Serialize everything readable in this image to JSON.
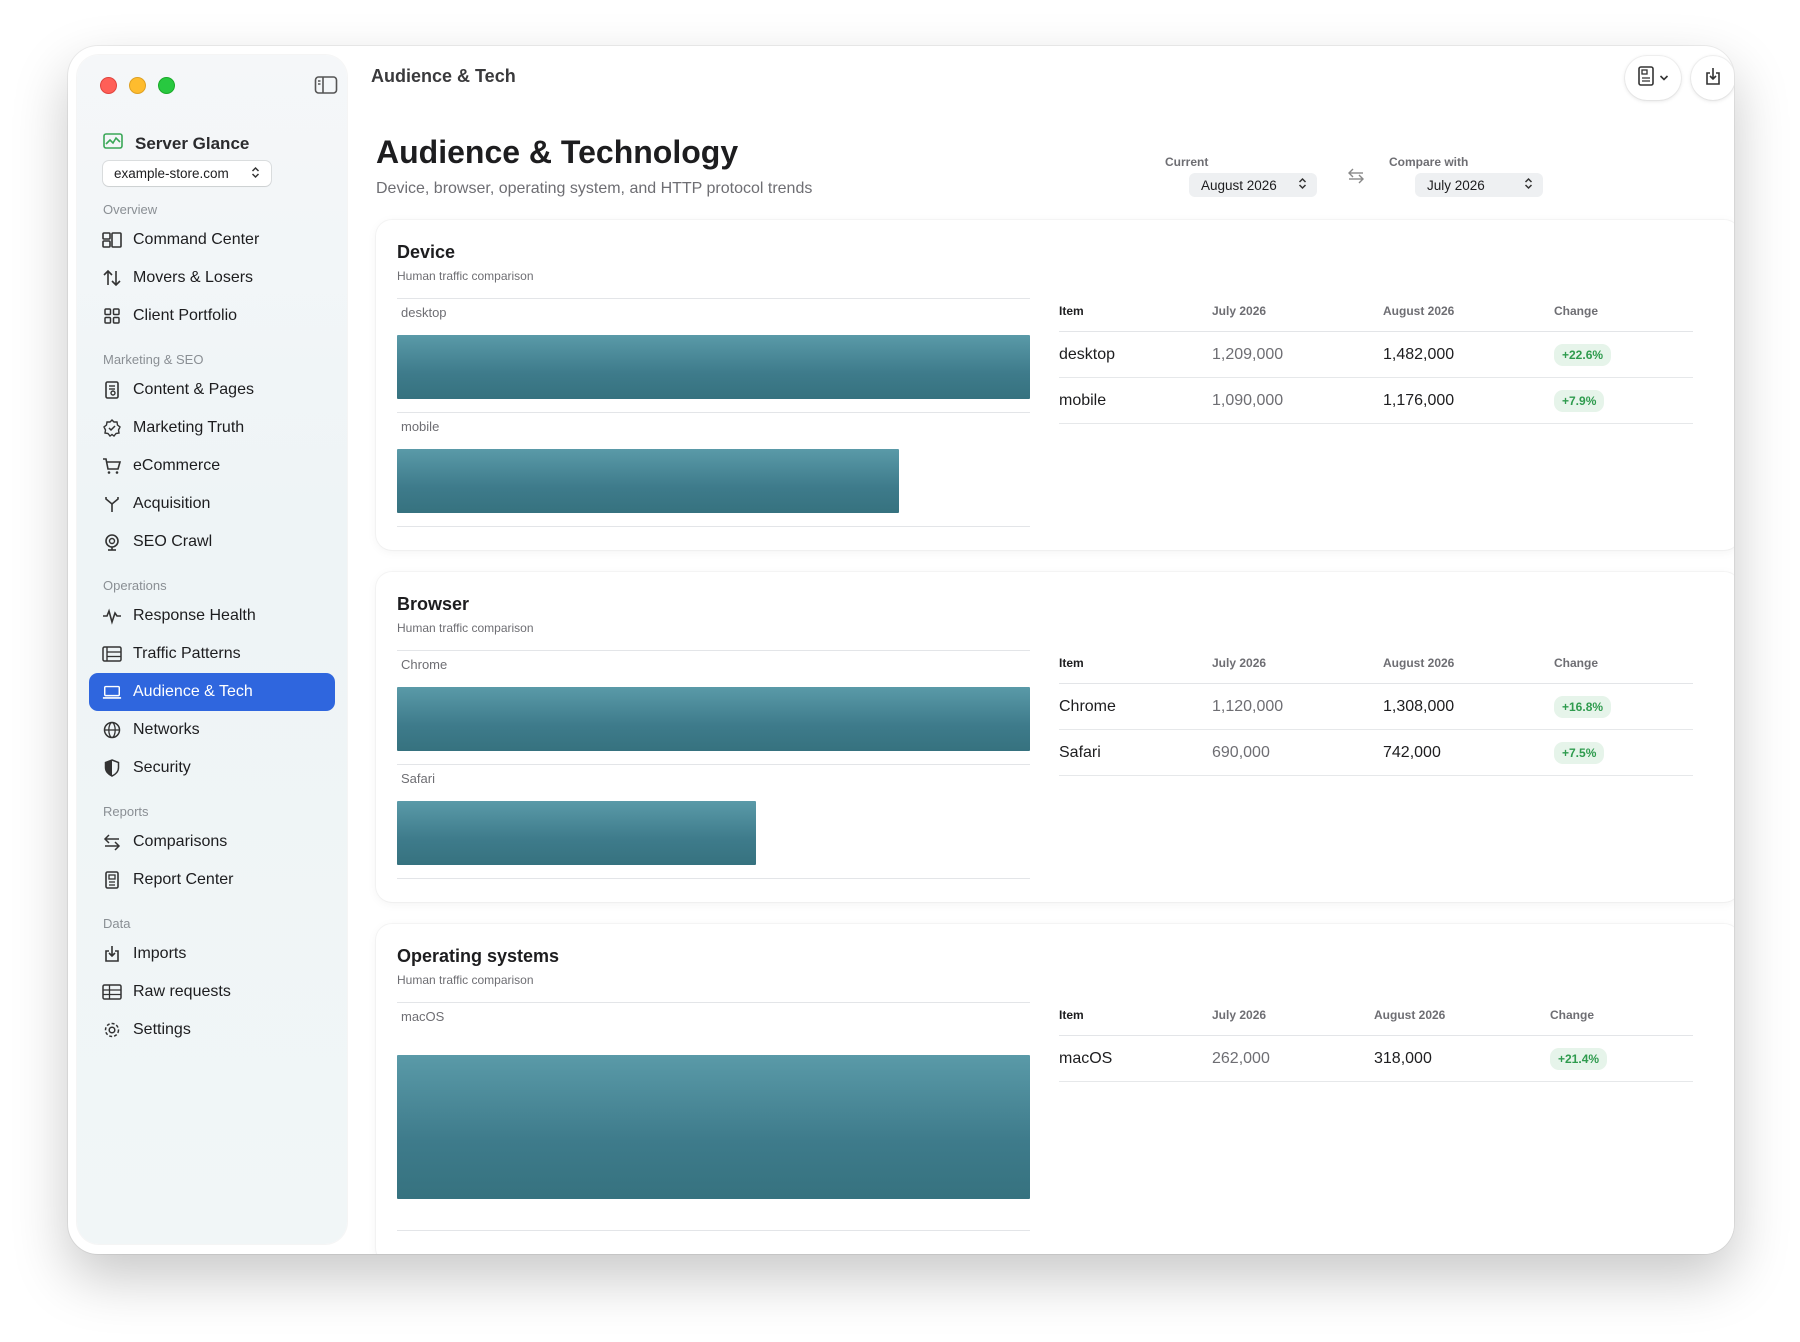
{
  "window": {
    "toolbar_title": "Audience & Tech"
  },
  "sidebar": {
    "brand": "Server Glance",
    "site": "example-store.com",
    "sections": [
      {
        "title": "Overview",
        "items": [
          {
            "label": "Command Center",
            "icon": "command-center-icon"
          },
          {
            "label": "Movers & Losers",
            "icon": "arrows-up-down-icon"
          },
          {
            "label": "Client Portfolio",
            "icon": "grid-icon"
          }
        ]
      },
      {
        "title": "Marketing & SEO",
        "items": [
          {
            "label": "Content & Pages",
            "icon": "document-icon"
          },
          {
            "label": "Marketing Truth",
            "icon": "verified-badge-icon"
          },
          {
            "label": "eCommerce",
            "icon": "cart-icon"
          },
          {
            "label": "Acquisition",
            "icon": "fork-icon"
          },
          {
            "label": "SEO Crawl",
            "icon": "crawl-icon"
          }
        ]
      },
      {
        "title": "Operations",
        "items": [
          {
            "label": "Response Health",
            "icon": "pulse-icon"
          },
          {
            "label": "Traffic Patterns",
            "icon": "list-icon"
          },
          {
            "label": "Audience & Tech",
            "icon": "laptop-icon",
            "active": true
          },
          {
            "label": "Networks",
            "icon": "globe-icon"
          },
          {
            "label": "Security",
            "icon": "shield-icon"
          }
        ]
      },
      {
        "title": "Reports",
        "items": [
          {
            "label": "Comparisons",
            "icon": "swap-arrows-icon"
          },
          {
            "label": "Report Center",
            "icon": "report-icon"
          }
        ]
      },
      {
        "title": "Data",
        "items": [
          {
            "label": "Imports",
            "icon": "import-icon"
          },
          {
            "label": "Raw requests",
            "icon": "table-icon"
          },
          {
            "label": "Settings",
            "icon": "gear-icon"
          }
        ]
      }
    ]
  },
  "header": {
    "title": "Audience & Technology",
    "subtitle": "Device, browser, operating system, and HTTP protocol trends",
    "current_label": "Current",
    "current_value": "August 2026",
    "compare_label": "Compare with",
    "compare_value": "July 2026"
  },
  "cards": [
    {
      "title": "Device",
      "subtitle": "Human traffic comparison",
      "columns": [
        "Item",
        "July 2026",
        "August 2026",
        "Change"
      ],
      "rows": [
        {
          "item": "desktop",
          "prev": "1,209,000",
          "cur": "1,482,000",
          "change": "+22.6%",
          "value": 1482000
        },
        {
          "item": "mobile",
          "prev": "1,090,000",
          "cur": "1,176,000",
          "change": "+7.9%",
          "value": 1176000
        }
      ]
    },
    {
      "title": "Browser",
      "subtitle": "Human traffic comparison",
      "columns": [
        "Item",
        "July 2026",
        "August 2026",
        "Change"
      ],
      "rows": [
        {
          "item": "Chrome",
          "prev": "1,120,000",
          "cur": "1,308,000",
          "change": "+16.8%",
          "value": 1308000
        },
        {
          "item": "Safari",
          "prev": "690,000",
          "cur": "742,000",
          "change": "+7.5%",
          "value": 742000
        }
      ]
    },
    {
      "title": "Operating systems",
      "subtitle": "Human traffic comparison",
      "columns": [
        "Item",
        "July 2026",
        "August 2026",
        "Change"
      ],
      "rows": [
        {
          "item": "macOS",
          "prev": "262,000",
          "cur": "318,000",
          "change": "+21.4%",
          "value": 318000
        }
      ]
    }
  ],
  "colors": {
    "accent": "#2f66de",
    "bar": "#3e7b8b",
    "positive_badge_bg": "#e6f4ea",
    "positive_badge_text": "#2f9b4e"
  }
}
